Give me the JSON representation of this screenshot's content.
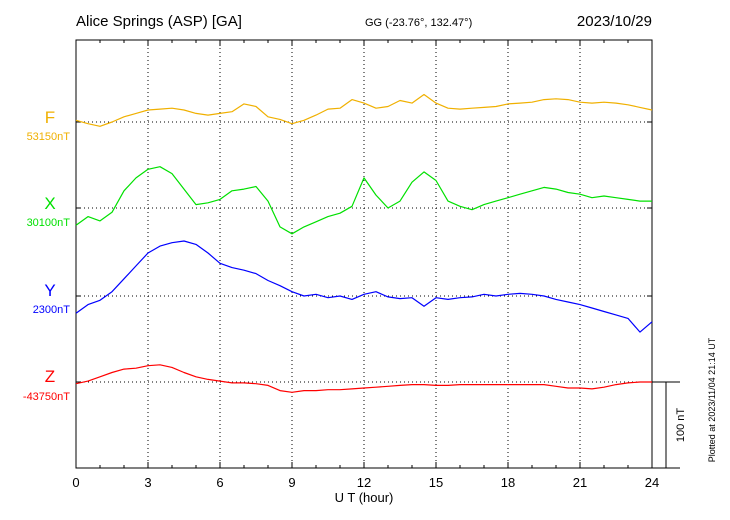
{
  "header": {
    "station": "Alice Springs (ASP)  [GA]",
    "coords": "GG (-23.76°, 132.47°)",
    "date": "2023/10/29"
  },
  "plotted_note": "Plotted at 2023/11/04 21:14 UT",
  "scale_bar_label": "100 nT",
  "colors": {
    "F": "#f0b000",
    "X": "#00e000",
    "Y": "#0000ff",
    "Z": "#ff0000"
  },
  "chart_data": {
    "type": "line",
    "xlabel": "U T (hour)",
    "xlim": [
      0,
      24
    ],
    "x_ticks": [
      0,
      3,
      6,
      9,
      12,
      15,
      18,
      21,
      24
    ],
    "scale_nT_per_division": 100,
    "series": [
      {
        "name": "F",
        "baseline_label": "53150nT",
        "baseline_nT": 53150,
        "x": [
          0,
          0.5,
          1,
          1.5,
          2,
          2.5,
          3,
          3.5,
          4,
          4.5,
          5,
          5.5,
          6,
          6.5,
          7,
          7.5,
          8,
          8.5,
          9,
          9.5,
          10,
          10.5,
          11,
          11.5,
          12,
          12.5,
          13,
          13.5,
          14,
          14.5,
          15,
          15.5,
          16,
          16.5,
          17,
          17.5,
          18,
          18.5,
          19,
          19.5,
          20,
          20.5,
          21,
          21.5,
          22,
          22.5,
          23,
          23.5,
          24
        ],
        "y": [
          53152,
          53148,
          53145,
          53150,
          53156,
          53160,
          53164,
          53165,
          53166,
          53164,
          53160,
          53158,
          53160,
          53162,
          53171,
          53168,
          53156,
          53153,
          53148,
          53152,
          53158,
          53165,
          53166,
          53176,
          53172,
          53166,
          53168,
          53175,
          53172,
          53182,
          53172,
          53166,
          53165,
          53166,
          53167,
          53168,
          53171,
          53172,
          53173,
          53176,
          53177,
          53176,
          53173,
          53172,
          53173,
          53172,
          53170,
          53167,
          53164
        ]
      },
      {
        "name": "X",
        "baseline_label": "30100nT",
        "baseline_nT": 30100,
        "x": [
          0,
          0.5,
          1,
          1.5,
          2,
          2.5,
          3,
          3.5,
          4,
          4.5,
          5,
          5.5,
          6,
          6.5,
          7,
          7.5,
          8,
          8.5,
          9,
          9.5,
          10,
          10.5,
          11,
          11.5,
          12,
          12.5,
          13,
          13.5,
          14,
          14.5,
          15,
          15.5,
          16,
          16.5,
          17,
          17.5,
          18,
          18.5,
          19,
          19.5,
          20,
          20.5,
          21,
          21.5,
          22,
          22.5,
          23,
          23.5,
          24
        ],
        "y": [
          30080,
          30090,
          30085,
          30095,
          30120,
          30135,
          30145,
          30148,
          30140,
          30122,
          30104,
          30106,
          30110,
          30120,
          30122,
          30125,
          30108,
          30078,
          30070,
          30078,
          30084,
          30090,
          30094,
          30102,
          30135,
          30115,
          30100,
          30108,
          30130,
          30142,
          30132,
          30108,
          30102,
          30098,
          30104,
          30108,
          30112,
          30116,
          30120,
          30124,
          30122,
          30118,
          30116,
          30112,
          30114,
          30112,
          30110,
          30108,
          30108
        ]
      },
      {
        "name": "Y",
        "baseline_label": "2300nT",
        "baseline_nT": 2300,
        "x": [
          0,
          0.5,
          1,
          1.5,
          2,
          2.5,
          3,
          3.5,
          4,
          4.5,
          5,
          5.5,
          6,
          6.5,
          7,
          7.5,
          8,
          8.5,
          9,
          9.5,
          10,
          10.5,
          11,
          11.5,
          12,
          12.5,
          13,
          13.5,
          14,
          14.5,
          15,
          15.5,
          16,
          16.5,
          17,
          17.5,
          18,
          18.5,
          19,
          19.5,
          20,
          20.5,
          21,
          21.5,
          22,
          22.5,
          23,
          23.5,
          24
        ],
        "y": [
          2280,
          2290,
          2295,
          2305,
          2320,
          2335,
          2350,
          2358,
          2362,
          2364,
          2360,
          2350,
          2338,
          2333,
          2330,
          2326,
          2318,
          2312,
          2305,
          2300,
          2302,
          2298,
          2300,
          2296,
          2302,
          2305,
          2299,
          2297,
          2298,
          2288,
          2298,
          2296,
          2298,
          2299,
          2302,
          2300,
          2302,
          2303,
          2302,
          2300,
          2296,
          2293,
          2290,
          2286,
          2282,
          2278,
          2274,
          2258,
          2270
        ]
      },
      {
        "name": "Z",
        "baseline_label": "-43750nT",
        "baseline_nT": -43750,
        "x": [
          0,
          0.5,
          1,
          1.5,
          2,
          2.5,
          3,
          3.5,
          4,
          4.5,
          5,
          5.5,
          6,
          6.5,
          7,
          7.5,
          8,
          8.5,
          9,
          9.5,
          10,
          10.5,
          11,
          11.5,
          12,
          12.5,
          13,
          13.5,
          14,
          14.5,
          15,
          15.5,
          16,
          16.5,
          17,
          17.5,
          18,
          18.5,
          19,
          19.5,
          20,
          20.5,
          21,
          21.5,
          22,
          22.5,
          23,
          23.5,
          24
        ],
        "y": [
          -43752,
          -43749,
          -43744,
          -43739,
          -43735,
          -43734,
          -43731,
          -43730,
          -43733,
          -43739,
          -43744,
          -43747,
          -43749,
          -43751,
          -43751,
          -43752,
          -43754,
          -43760,
          -43762,
          -43760,
          -43760,
          -43759,
          -43759,
          -43758,
          -43757,
          -43756,
          -43755,
          -43754,
          -43753,
          -43753,
          -43754,
          -43754,
          -43753,
          -43753,
          -43753,
          -43753,
          -43753,
          -43753,
          -43753,
          -43753,
          -43755,
          -43757,
          -43757,
          -43758,
          -43756,
          -43753,
          -43751,
          -43750,
          -43750
        ]
      }
    ]
  }
}
